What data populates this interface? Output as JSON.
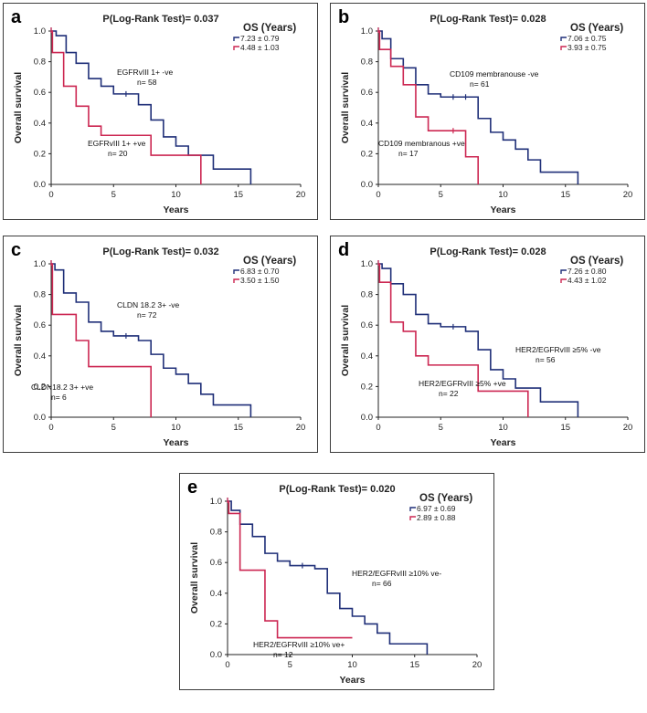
{
  "colors": {
    "ve_negative": "#1f2f78",
    "ve_positive": "#cc2752",
    "axis": "#222222"
  },
  "chart_data": [
    {
      "panel": "a",
      "type": "line",
      "title": "P(Log-Rank Test)= 0.037",
      "xlabel": "Years",
      "ylabel": "Overall survival",
      "xlim": [
        0,
        20
      ],
      "ylim": [
        0,
        1.0
      ],
      "xticks": [
        0,
        5,
        10,
        15,
        20
      ],
      "yticks": [
        0.0,
        0.2,
        0.4,
        0.6,
        0.8,
        1.0
      ],
      "legend_title": "OS (Years)",
      "series": [
        {
          "name": "EGFRvIII 1+ -ve",
          "n_label": "n= 58",
          "legend": "7.23 ± 0.79",
          "color_key": "ve_negative",
          "steps": [
            [
              0,
              1.0
            ],
            [
              0.4,
              0.97
            ],
            [
              1.2,
              0.86
            ],
            [
              2,
              0.79
            ],
            [
              3,
              0.69
            ],
            [
              4,
              0.64
            ],
            [
              5,
              0.59
            ],
            [
              7,
              0.52
            ],
            [
              8,
              0.42
            ],
            [
              9,
              0.31
            ],
            [
              10,
              0.25
            ],
            [
              11,
              0.19
            ],
            [
              13,
              0.1
            ],
            [
              16,
              0.1
            ],
            [
              16,
              0.0
            ]
          ],
          "censor": [
            [
              6,
              0.59
            ]
          ]
        },
        {
          "name": "EGFRvIII 1+ +ve",
          "n_label": "n= 20",
          "legend": "4.48 ± 1.03",
          "color_key": "ve_positive",
          "steps": [
            [
              0,
              1.0
            ],
            [
              0.1,
              0.86
            ],
            [
              1,
              0.64
            ],
            [
              2,
              0.51
            ],
            [
              3,
              0.38
            ],
            [
              4,
              0.32
            ],
            [
              8,
              0.19
            ],
            [
              12,
              0.19
            ],
            [
              12,
              0.0
            ]
          ],
          "censor": []
        }
      ]
    },
    {
      "panel": "b",
      "type": "line",
      "title": "P(Log-Rank Test)= 0.028",
      "xlabel": "Years",
      "ylabel": "Overall survival",
      "xlim": [
        0,
        20
      ],
      "ylim": [
        0,
        1.0
      ],
      "xticks": [
        0,
        5,
        10,
        15,
        20
      ],
      "yticks": [
        0.0,
        0.2,
        0.4,
        0.6,
        0.8,
        1.0
      ],
      "legend_title": "OS (Years)",
      "series": [
        {
          "name": "CD109 membranouse -ve",
          "n_label": "n= 61",
          "legend": "7.06 ± 0.75",
          "color_key": "ve_negative",
          "steps": [
            [
              0,
              1.0
            ],
            [
              0.3,
              0.95
            ],
            [
              1,
              0.82
            ],
            [
              2,
              0.76
            ],
            [
              3,
              0.65
            ],
            [
              4,
              0.59
            ],
            [
              5,
              0.57
            ],
            [
              8,
              0.43
            ],
            [
              9,
              0.34
            ],
            [
              10,
              0.29
            ],
            [
              11,
              0.23
            ],
            [
              12,
              0.16
            ],
            [
              13,
              0.08
            ],
            [
              16,
              0.08
            ],
            [
              16,
              0.0
            ]
          ],
          "censor": [
            [
              6,
              0.57
            ],
            [
              7,
              0.57
            ]
          ]
        },
        {
          "name": "CD109 membranous +ve",
          "n_label": "n= 17",
          "legend": "3.93 ± 0.75",
          "color_key": "ve_positive",
          "steps": [
            [
              0,
              1.0
            ],
            [
              0.1,
              0.88
            ],
            [
              1,
              0.77
            ],
            [
              2,
              0.65
            ],
            [
              3,
              0.44
            ],
            [
              4,
              0.35
            ],
            [
              7,
              0.18
            ],
            [
              8,
              0.18
            ],
            [
              8,
              0.0
            ]
          ],
          "censor": [
            [
              6,
              0.35
            ]
          ]
        }
      ]
    },
    {
      "panel": "c",
      "type": "line",
      "title": "P(Log-Rank Test)= 0.032",
      "xlabel": "Years",
      "ylabel": "Overall survival",
      "xlim": [
        0,
        20
      ],
      "ylim": [
        0,
        1.0
      ],
      "xticks": [
        0,
        5,
        10,
        15,
        20
      ],
      "yticks": [
        0.0,
        0.2,
        0.4,
        0.6,
        0.8,
        1.0
      ],
      "legend_title": "OS (Years)",
      "series": [
        {
          "name": "CLDN 18.2 3+ -ve",
          "n_label": "n= 72",
          "legend": "6.83 ± 0.70",
          "color_key": "ve_negative",
          "steps": [
            [
              0,
              1.0
            ],
            [
              0.3,
              0.96
            ],
            [
              1,
              0.81
            ],
            [
              2,
              0.75
            ],
            [
              3,
              0.62
            ],
            [
              4,
              0.56
            ],
            [
              5,
              0.53
            ],
            [
              7,
              0.5
            ],
            [
              8,
              0.41
            ],
            [
              9,
              0.32
            ],
            [
              10,
              0.28
            ],
            [
              11,
              0.22
            ],
            [
              12,
              0.15
            ],
            [
              13,
              0.08
            ],
            [
              16,
              0.08
            ],
            [
              16,
              0.0
            ]
          ],
          "censor": [
            [
              6,
              0.53
            ]
          ]
        },
        {
          "name": "CLDN18.2 3+ +ve",
          "n_label": "n= 6",
          "legend": "3.50 ± 1.50",
          "color_key": "ve_positive",
          "steps": [
            [
              0,
              1.0
            ],
            [
              0.1,
              0.67
            ],
            [
              2,
              0.5
            ],
            [
              3,
              0.33
            ],
            [
              8,
              0.33
            ],
            [
              8,
              0.0
            ]
          ],
          "censor": []
        }
      ]
    },
    {
      "panel": "d",
      "type": "line",
      "title": "P(Log-Rank Test)= 0.028",
      "xlabel": "Years",
      "ylabel": "Overall survival",
      "xlim": [
        0,
        20
      ],
      "ylim": [
        0,
        1.0
      ],
      "xticks": [
        0,
        5,
        10,
        15,
        20
      ],
      "yticks": [
        0.0,
        0.2,
        0.4,
        0.6,
        0.8,
        1.0
      ],
      "legend_title": "OS (Years)",
      "series": [
        {
          "name": "HER2/EGFRvIII ≥5% -ve",
          "n_label": "n= 56",
          "legend": "7.26 ± 0.80",
          "color_key": "ve_negative",
          "steps": [
            [
              0,
              1.0
            ],
            [
              0.3,
              0.97
            ],
            [
              1,
              0.87
            ],
            [
              2,
              0.8
            ],
            [
              3,
              0.67
            ],
            [
              4,
              0.61
            ],
            [
              5,
              0.59
            ],
            [
              7,
              0.56
            ],
            [
              8,
              0.44
            ],
            [
              9,
              0.31
            ],
            [
              10,
              0.25
            ],
            [
              11,
              0.19
            ],
            [
              13,
              0.1
            ],
            [
              16,
              0.1
            ],
            [
              16,
              0.0
            ]
          ],
          "censor": [
            [
              6,
              0.59
            ]
          ]
        },
        {
          "name": "HER2/EGFRvIII ≥5% +ve",
          "n_label": "n= 22",
          "legend": "4.43 ± 1.02",
          "color_key": "ve_positive",
          "steps": [
            [
              0,
              1.0
            ],
            [
              0.1,
              0.88
            ],
            [
              1,
              0.62
            ],
            [
              2,
              0.56
            ],
            [
              3,
              0.4
            ],
            [
              4,
              0.34
            ],
            [
              8,
              0.17
            ],
            [
              12,
              0.17
            ],
            [
              12,
              0.0
            ]
          ],
          "censor": []
        }
      ]
    },
    {
      "panel": "e",
      "type": "line",
      "title": "P(Log-Rank Test)= 0.020",
      "xlabel": "Years",
      "ylabel": "Overall survival",
      "xlim": [
        0,
        20
      ],
      "ylim": [
        0,
        1.0
      ],
      "xticks": [
        0,
        5,
        10,
        15,
        20
      ],
      "yticks": [
        0.0,
        0.2,
        0.4,
        0.6,
        0.8,
        1.0
      ],
      "legend_title": "OS (Years)",
      "series": [
        {
          "name": "HER2/EGFRvIII ≥10% ve-",
          "n_label": "n= 66",
          "legend": "6.97 ± 0.69",
          "color_key": "ve_negative",
          "steps": [
            [
              0,
              1.0
            ],
            [
              0.3,
              0.94
            ],
            [
              1,
              0.85
            ],
            [
              2,
              0.77
            ],
            [
              3,
              0.66
            ],
            [
              4,
              0.61
            ],
            [
              5,
              0.58
            ],
            [
              7,
              0.56
            ],
            [
              8,
              0.4
            ],
            [
              9,
              0.3
            ],
            [
              10,
              0.25
            ],
            [
              11,
              0.2
            ],
            [
              12,
              0.14
            ],
            [
              13,
              0.07
            ],
            [
              16,
              0.07
            ],
            [
              16,
              0.0
            ]
          ],
          "censor": [
            [
              6,
              0.58
            ]
          ]
        },
        {
          "name": "HER2/EGFRvIII ≥10% ve+",
          "n_label": "n= 12",
          "legend": "2.89 ± 0.88",
          "color_key": "ve_positive",
          "steps": [
            [
              0,
              1.0
            ],
            [
              0.1,
              0.92
            ],
            [
              1,
              0.55
            ],
            [
              3,
              0.22
            ],
            [
              4,
              0.11
            ],
            [
              10,
              0.11
            ]
          ],
          "censor": []
        }
      ]
    }
  ]
}
